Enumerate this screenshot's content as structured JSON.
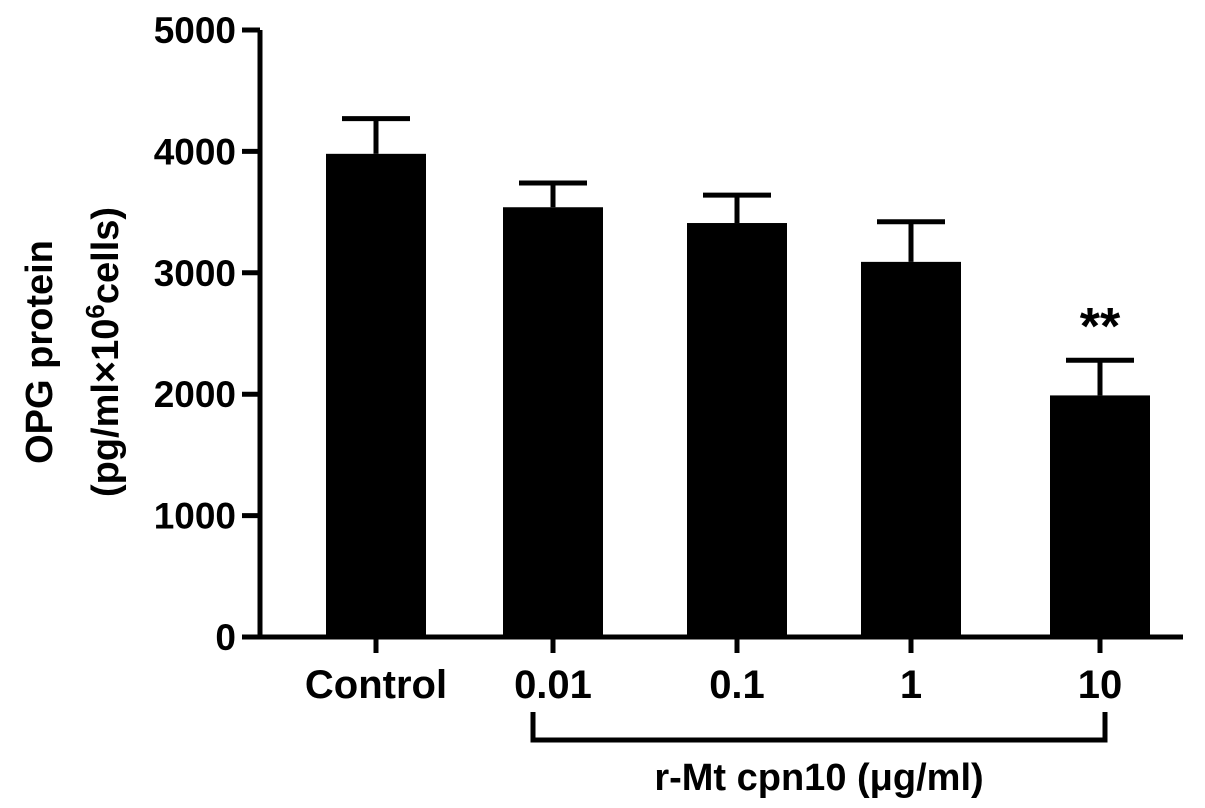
{
  "chart_data": {
    "type": "bar",
    "categories": [
      "Control",
      "0.01",
      "0.1",
      "1",
      "10"
    ],
    "values": [
      3980,
      3540,
      3410,
      3090,
      1990
    ],
    "error_upper": [
      4270,
      3740,
      3640,
      3420,
      2280
    ],
    "annotations": [
      "",
      "",
      "",
      "",
      "**"
    ],
    "ylabel_line1": "OPG protein",
    "ylabel_line2_prefix": "(pg/ml×10",
    "ylabel_line2_sup": "6",
    "ylabel_line2_suffix": "cells)",
    "group_label": "r-Mt cpn10 (μg/ml)",
    "ylim": [
      0,
      5000
    ],
    "yticks": [
      "0",
      "1000",
      "2000",
      "3000",
      "4000",
      "5000"
    ],
    "bar_color": "#000000",
    "grid": false
  }
}
